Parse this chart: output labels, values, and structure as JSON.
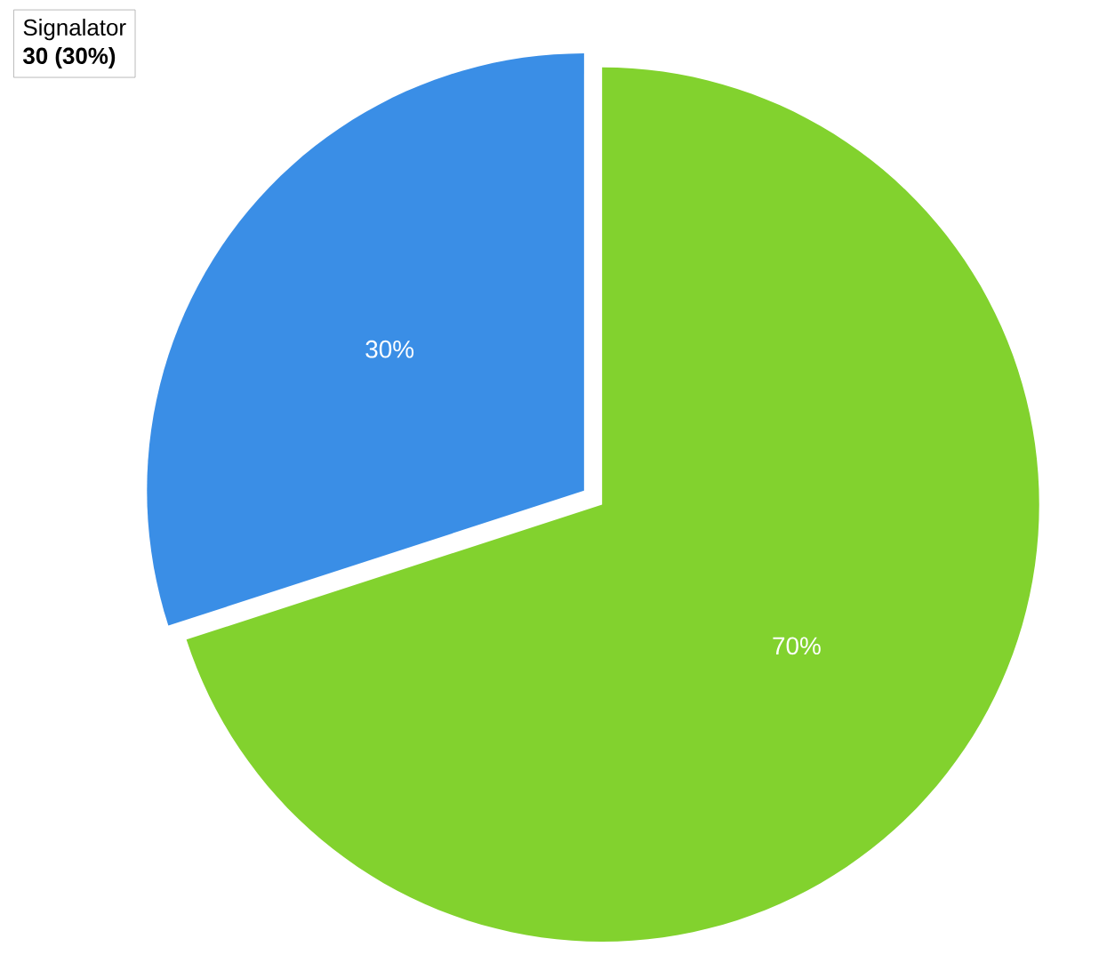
{
  "chart_data": {
    "type": "pie",
    "categories": [
      "Signalator",
      null
    ],
    "values": [
      30,
      70
    ],
    "colors": [
      "#3a8ee6",
      "#82d22e"
    ],
    "value_labels": [
      "30%",
      "70%"
    ],
    "annotations": [
      "30 (30%)"
    ]
  }
}
